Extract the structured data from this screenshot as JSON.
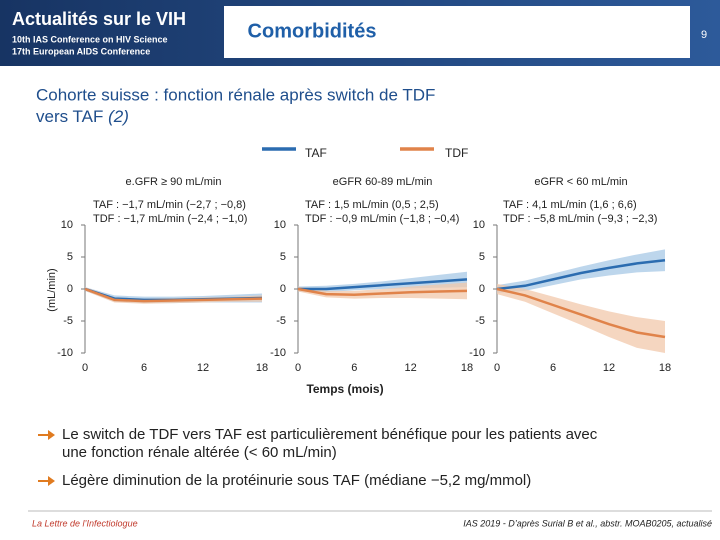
{
  "header": {
    "title": "Actualités sur le VIH",
    "line1": "10th IAS Conference on HIV Science",
    "line2": "17th European AIDS Conference",
    "section": "Comorbidités",
    "page": "9"
  },
  "title": {
    "line1": "Cohorte suisse : fonction rénale après switch de TDF",
    "line2": "vers TAF",
    "suffix": "(2)"
  },
  "axes": {
    "y_label": "(mL/min)",
    "x_label": "Temps (mois)"
  },
  "chart_data": [
    {
      "type": "line",
      "title": "e.GFR ≥ 90 mL/min",
      "annotations": [
        "TAF : −1,7 mL/min (−2,7 ; −0,8)",
        "TDF : −1,7 mL/min (−2,4 ; −1,0)"
      ],
      "x": [
        0,
        3,
        6,
        9,
        12,
        15,
        18
      ],
      "xlim": [
        0,
        18
      ],
      "xticks": [
        0,
        6,
        12,
        18
      ],
      "ylim": [
        -10,
        10
      ],
      "yticks": [
        10,
        5,
        0,
        -5,
        -10
      ],
      "series": [
        {
          "name": "TAF",
          "color": "#2b6cb0",
          "band_color": "#a7c8e6",
          "values": [
            0,
            -1.5,
            -1.7,
            -1.7,
            -1.6,
            -1.5,
            -1.4
          ],
          "lower": [
            -0.3,
            -2.0,
            -2.2,
            -2.2,
            -2.1,
            -2.1,
            -2.1
          ],
          "upper": [
            0.3,
            -1.0,
            -1.2,
            -1.2,
            -1.1,
            -0.9,
            -0.7
          ]
        },
        {
          "name": "TDF",
          "color": "#e0834a",
          "band_color": "#f2c8ab",
          "values": [
            0,
            -1.7,
            -1.9,
            -1.8,
            -1.7,
            -1.6,
            -1.5
          ],
          "lower": [
            -0.3,
            -2.1,
            -2.3,
            -2.2,
            -2.1,
            -2.0,
            -2.0
          ],
          "upper": [
            0.3,
            -1.3,
            -1.5,
            -1.4,
            -1.3,
            -1.2,
            -1.0
          ]
        }
      ]
    },
    {
      "type": "line",
      "title": "eGFR 60-89 mL/min",
      "annotations": [
        "TAF : 1,5 mL/min (0,5 ; 2,5)",
        "TDF : −0,9 mL/min (−1,8 ; −0,4)"
      ],
      "x": [
        0,
        3,
        6,
        9,
        12,
        15,
        18
      ],
      "xlim": [
        0,
        18
      ],
      "xticks": [
        0,
        6,
        12,
        18
      ],
      "ylim": [
        -10,
        10
      ],
      "yticks": [
        10,
        5,
        0,
        -5,
        -10
      ],
      "series": [
        {
          "name": "TAF",
          "color": "#2b6cb0",
          "band_color": "#a7c8e6",
          "values": [
            0,
            0,
            0.3,
            0.6,
            0.9,
            1.2,
            1.5
          ],
          "lower": [
            -0.4,
            -0.5,
            -0.2,
            0,
            0.1,
            0.2,
            0.3
          ],
          "upper": [
            0.4,
            0.5,
            0.8,
            1.2,
            1.7,
            2.2,
            2.7
          ]
        },
        {
          "name": "TDF",
          "color": "#e0834a",
          "band_color": "#f2c8ab",
          "values": [
            0,
            -0.8,
            -0.9,
            -0.7,
            -0.5,
            -0.4,
            -0.3
          ],
          "lower": [
            -0.4,
            -1.3,
            -1.5,
            -1.4,
            -1.4,
            -1.5,
            -1.6
          ],
          "upper": [
            0.4,
            -0.3,
            -0.3,
            0,
            0.4,
            0.7,
            1.0
          ]
        }
      ]
    },
    {
      "type": "line",
      "title": "eGFR < 60 mL/min",
      "annotations": [
        "TAF : 4,1 mL/min (1,6 ; 6,6)",
        "TDF : −5,8 mL/min (−9,3 ; −2,3)"
      ],
      "x": [
        0,
        3,
        6,
        9,
        12,
        15,
        18
      ],
      "xlim": [
        0,
        18
      ],
      "xticks": [
        0,
        6,
        12,
        18
      ],
      "ylim": [
        -10,
        10
      ],
      "yticks": [
        10,
        5,
        0,
        -5,
        -10
      ],
      "series": [
        {
          "name": "TAF",
          "color": "#2b6cb0",
          "band_color": "#a7c8e6",
          "values": [
            0,
            0.5,
            1.5,
            2.5,
            3.3,
            4.0,
            4.5
          ],
          "lower": [
            -0.6,
            -0.3,
            0.6,
            1.5,
            2.1,
            2.6,
            2.8
          ],
          "upper": [
            0.6,
            1.3,
            2.4,
            3.5,
            4.5,
            5.4,
            6.2
          ]
        },
        {
          "name": "TDF",
          "color": "#e0834a",
          "band_color": "#f2c8ab",
          "values": [
            0,
            -1.0,
            -2.5,
            -4.0,
            -5.5,
            -6.8,
            -7.5
          ],
          "lower": [
            -0.8,
            -2.0,
            -3.8,
            -5.6,
            -7.5,
            -9.2,
            -10.0
          ],
          "upper": [
            0.8,
            0,
            -1.2,
            -2.4,
            -3.5,
            -4.4,
            -5.0
          ]
        }
      ]
    }
  ],
  "bullets": [
    [
      "Le switch de TDF vers TAF est particulièrement bénéfique pour les patients avec",
      "une fonction rénale altérée (< 60 mL/min)"
    ],
    [
      "Légère diminution de la protéinurie sous TAF (médiane −5,2 mg/mmol)"
    ]
  ],
  "footer": {
    "left": "La Lettre de l’Infectiologue",
    "right": "IAS 2019 - D’après Surial B et al., abstr. MOAB0205, actualisé"
  }
}
